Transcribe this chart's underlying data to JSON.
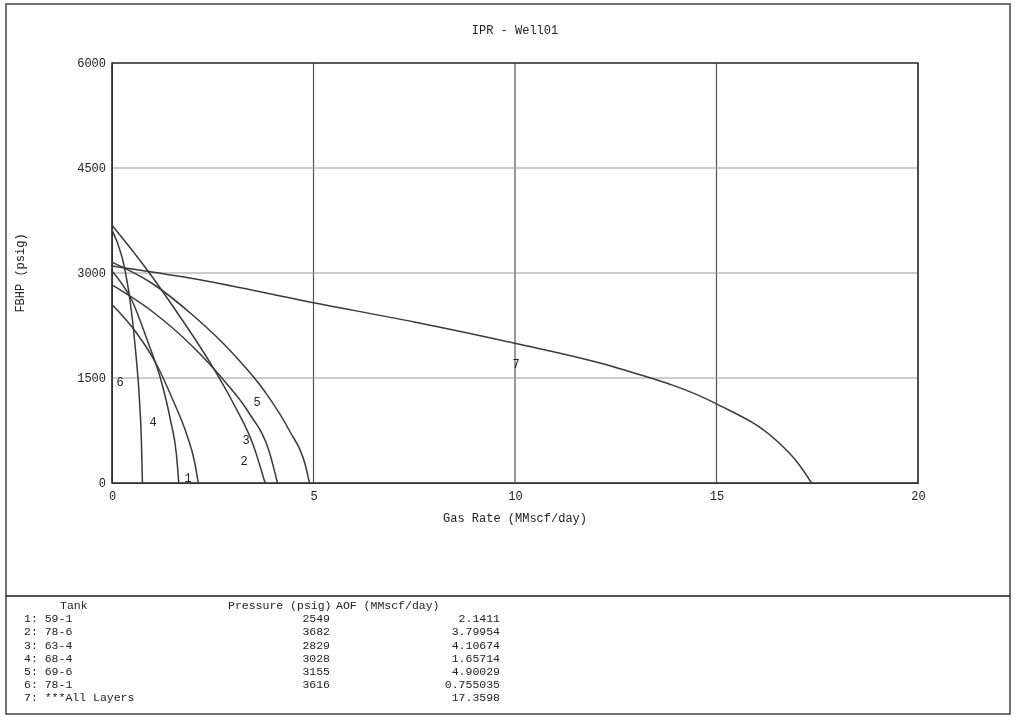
{
  "chart_data": {
    "type": "line",
    "title": "IPR - Well01",
    "xlabel": "Gas Rate (MMscf/day)",
    "ylabel": "FBHP (psig)",
    "xlim": [
      0,
      20
    ],
    "ylim": [
      0,
      6000
    ],
    "xticks": [
      0,
      5,
      10,
      15,
      20
    ],
    "yticks": [
      0,
      1500,
      3000,
      4500,
      6000
    ],
    "grid": true,
    "marker": "none",
    "line_style": "solid",
    "series": [
      {
        "color": "#3a3a3a",
        "x": [
          0,
          0.6,
          1.1,
          1.5,
          1.85,
          2.05,
          2.1411
        ],
        "values": [
          2549,
          2150,
          1700,
          1200,
          700,
          300,
          0
        ]
      },
      {
        "color": "#3a3a3a",
        "x": [
          0,
          0.8,
          1.6,
          2.4,
          3.0,
          3.5,
          3.79954
        ],
        "values": [
          3682,
          3100,
          2450,
          1750,
          1150,
          550,
          0
        ]
      },
      {
        "color": "#3a3a3a",
        "x": [
          0,
          1,
          2,
          2.8,
          3.4,
          3.9,
          4.10674
        ],
        "values": [
          2829,
          2450,
          1950,
          1450,
          1000,
          450,
          0
        ]
      },
      {
        "color": "#3a3a3a",
        "x": [
          0,
          0.5,
          0.9,
          1.2,
          1.45,
          1.6,
          1.65714
        ],
        "values": [
          3028,
          2600,
          2000,
          1500,
          900,
          400,
          0
        ]
      },
      {
        "color": "#3a3a3a",
        "x": [
          0,
          1,
          2,
          3,
          3.8,
          4.4,
          4.8,
          4.90029
        ],
        "values": [
          3155,
          2850,
          2400,
          1850,
          1300,
          750,
          250,
          0
        ]
      },
      {
        "color": "#3a3a3a",
        "x": [
          0,
          0.3,
          0.45,
          0.6,
          0.68,
          0.73,
          0.755035
        ],
        "values": [
          3616,
          3100,
          2600,
          1800,
          1200,
          600,
          0
        ]
      },
      {
        "color": "#3a3a3a",
        "x": [
          0,
          2,
          5,
          7.5,
          10,
          12.5,
          15,
          16.5,
          17,
          17.3598
        ],
        "values": [
          3100,
          2920,
          2575,
          2300,
          1995,
          1650,
          1130,
          600,
          300,
          0
        ]
      }
    ],
    "annotations": [
      "1",
      "2",
      "3",
      "4",
      "5",
      "6",
      "7",
      "Tank\tPressure (psig)\tAOF (MMscf/day)",
      "1: 59-1\t2549\t2.1411",
      "2: 78-6\t3682\t3.79954",
      "3: 63-4\t2829\t4.10674",
      "4: 68-4\t3028\t1.65714",
      "5: 69-6\t3155\t4.90029",
      "6: 78-1\t3616\t0.755035",
      "7: ***All Layers\t\t17.3598"
    ]
  }
}
